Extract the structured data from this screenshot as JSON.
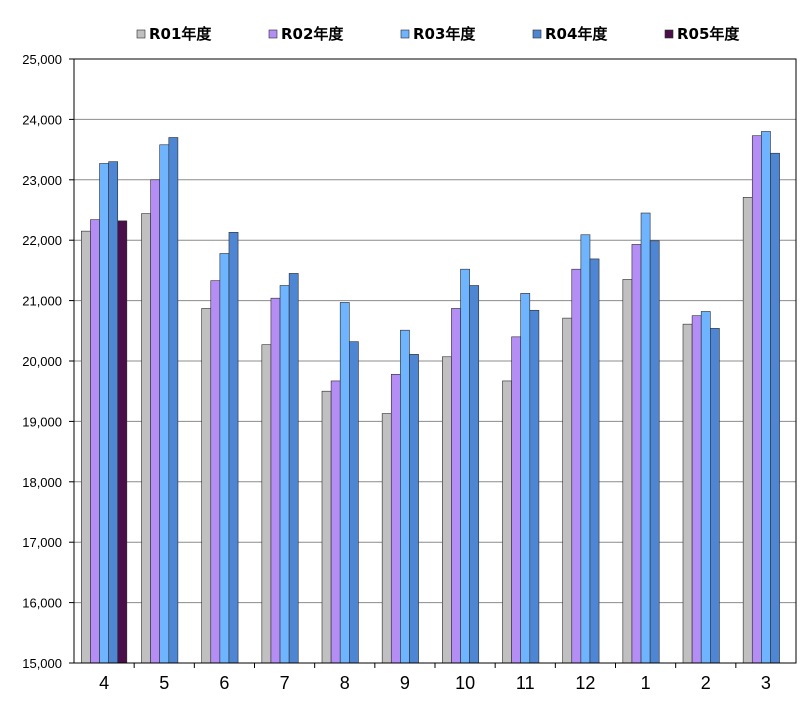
{
  "chart_data": {
    "type": "bar",
    "categories": [
      "4",
      "5",
      "6",
      "7",
      "8",
      "9",
      "10",
      "11",
      "12",
      "1",
      "2",
      "3"
    ],
    "series": [
      {
        "name": "R01年度",
        "color": "#c0c0c0",
        "values": [
          22150,
          22440,
          20870,
          20270,
          19500,
          19130,
          20070,
          19670,
          20710,
          21350,
          20610,
          22710
        ]
      },
      {
        "name": "R02年度",
        "color": "#b48ef5",
        "values": [
          22340,
          23000,
          21330,
          21040,
          19670,
          19780,
          20870,
          20400,
          21520,
          21930,
          20750,
          23730
        ]
      },
      {
        "name": "R03年度",
        "color": "#6fb4ff",
        "values": [
          23270,
          23580,
          21780,
          21250,
          20970,
          20510,
          21520,
          21120,
          22090,
          22450,
          20820,
          23800
        ]
      },
      {
        "name": "R04年度",
        "color": "#4f86d4",
        "values": [
          23300,
          23700,
          22130,
          21450,
          20320,
          20110,
          21250,
          20840,
          21690,
          21990,
          20540,
          23440
        ]
      },
      {
        "name": "R05年度",
        "color": "#4a0f4a",
        "values": [
          22320,
          null,
          null,
          null,
          null,
          null,
          null,
          null,
          null,
          null,
          null,
          null
        ]
      }
    ],
    "y_ticks": [
      "15,000",
      "16,000",
      "17,000",
      "18,000",
      "19,000",
      "20,000",
      "21,000",
      "22,000",
      "23,000",
      "24,000",
      "25,000"
    ],
    "ylim": [
      15000,
      25000
    ],
    "grid": true,
    "legend_position": "top",
    "title": "",
    "xlabel": "",
    "ylabel": ""
  }
}
